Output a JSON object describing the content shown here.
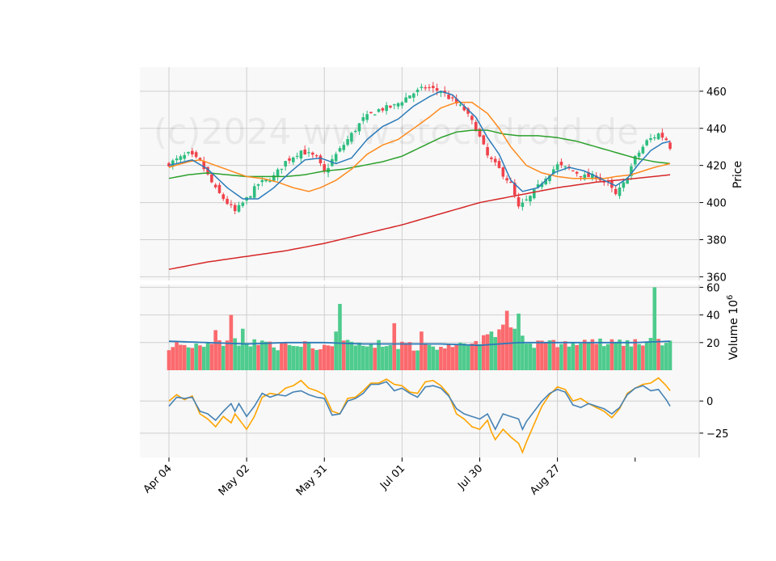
{
  "watermark": "(c)2024 www.stockdroid.de",
  "chart_data": {
    "type": "candlestick",
    "x_ticks": [
      "Apr 04",
      "May 02",
      "May 31",
      "Jul 01",
      "Jul 30",
      "Aug 27"
    ],
    "colors": {
      "up": "#2ebd7f",
      "down": "#f0424b",
      "vol_up": "#4ecb8d",
      "vol_down": "#fb6a6e",
      "ma_short": "#2b7bb9",
      "ma_mid": "#ff8a1c",
      "ma_long": "#2ca02c",
      "ma_200": "#d62728",
      "vol_ma": "#2b7bb9",
      "osc_a": "#4682b4",
      "osc_b": "#ffa500",
      "panel_bg": "#f8f8f8",
      "grid": "#cfcfcf"
    },
    "price_panel": {
      "ylabel": "Price",
      "ylim": [
        358,
        473
      ],
      "yticks": [
        360,
        380,
        400,
        420,
        440,
        460
      ],
      "close_keypoints": [
        [
          0,
          421
        ],
        [
          5,
          426
        ],
        [
          8,
          422
        ],
        [
          12,
          407
        ],
        [
          17,
          395
        ],
        [
          20,
          402
        ],
        [
          23,
          410
        ],
        [
          27,
          414
        ],
        [
          30,
          422
        ],
        [
          34,
          428
        ],
        [
          38,
          424
        ],
        [
          40,
          416
        ],
        [
          42,
          423
        ],
        [
          46,
          434
        ],
        [
          50,
          445
        ],
        [
          54,
          450
        ],
        [
          58,
          452
        ],
        [
          62,
          458
        ],
        [
          66,
          462
        ],
        [
          70,
          460
        ],
        [
          73,
          455
        ],
        [
          76,
          450
        ],
        [
          79,
          440
        ],
        [
          82,
          425
        ],
        [
          85,
          418
        ],
        [
          88,
          410
        ],
        [
          90,
          397
        ],
        [
          93,
          403
        ],
        [
          97,
          414
        ],
        [
          100,
          420
        ],
        [
          103,
          418
        ],
        [
          107,
          414
        ],
        [
          110,
          414
        ],
        [
          113,
          410
        ],
        [
          115,
          404
        ],
        [
          117,
          410
        ],
        [
          120,
          424
        ],
        [
          123,
          433
        ],
        [
          126,
          437
        ],
        [
          128,
          434
        ],
        [
          129,
          430
        ]
      ],
      "ma_short_keypoints": [
        [
          0,
          420
        ],
        [
          6,
          423
        ],
        [
          10,
          418
        ],
        [
          15,
          408
        ],
        [
          19,
          402
        ],
        [
          23,
          402
        ],
        [
          27,
          408
        ],
        [
          31,
          416
        ],
        [
          35,
          423
        ],
        [
          39,
          424
        ],
        [
          43,
          421
        ],
        [
          47,
          424
        ],
        [
          51,
          434
        ],
        [
          55,
          441
        ],
        [
          59,
          445
        ],
        [
          63,
          452
        ],
        [
          67,
          457
        ],
        [
          70,
          460
        ],
        [
          73,
          458
        ],
        [
          76,
          452
        ],
        [
          79,
          446
        ],
        [
          82,
          435
        ],
        [
          85,
          426
        ],
        [
          88,
          412
        ],
        [
          91,
          406
        ],
        [
          95,
          408
        ],
        [
          99,
          416
        ],
        [
          103,
          419
        ],
        [
          107,
          417
        ],
        [
          111,
          413
        ],
        [
          115,
          409
        ],
        [
          118,
          413
        ],
        [
          121,
          421
        ],
        [
          124,
          428
        ],
        [
          127,
          432
        ],
        [
          129,
          433
        ]
      ],
      "ma_mid_keypoints": [
        [
          0,
          419
        ],
        [
          5,
          422
        ],
        [
          8,
          423
        ],
        [
          12,
          420
        ],
        [
          16,
          417
        ],
        [
          20,
          414
        ],
        [
          24,
          413
        ],
        [
          28,
          411
        ],
        [
          32,
          408
        ],
        [
          36,
          406
        ],
        [
          39,
          408
        ],
        [
          43,
          412
        ],
        [
          47,
          418
        ],
        [
          51,
          426
        ],
        [
          55,
          431
        ],
        [
          59,
          434
        ],
        [
          63,
          440
        ],
        [
          67,
          446
        ],
        [
          70,
          451
        ],
        [
          74,
          454
        ],
        [
          78,
          454
        ],
        [
          82,
          448
        ],
        [
          85,
          440
        ],
        [
          88,
          430
        ],
        [
          92,
          420
        ],
        [
          96,
          416
        ],
        [
          100,
          414
        ],
        [
          104,
          413
        ],
        [
          108,
          413
        ],
        [
          112,
          413
        ],
        [
          115,
          414
        ],
        [
          119,
          415
        ],
        [
          122,
          417
        ],
        [
          125,
          419
        ],
        [
          129,
          421
        ]
      ],
      "ma_long_keypoints": [
        [
          0,
          413
        ],
        [
          5,
          415
        ],
        [
          10,
          416
        ],
        [
          15,
          415
        ],
        [
          20,
          414
        ],
        [
          25,
          414
        ],
        [
          30,
          414
        ],
        [
          35,
          415
        ],
        [
          40,
          417
        ],
        [
          45,
          418
        ],
        [
          50,
          420
        ],
        [
          55,
          422
        ],
        [
          60,
          425
        ],
        [
          65,
          430
        ],
        [
          70,
          435
        ],
        [
          74,
          438
        ],
        [
          78,
          439
        ],
        [
          82,
          439
        ],
        [
          86,
          437
        ],
        [
          90,
          436
        ],
        [
          95,
          436
        ],
        [
          100,
          435
        ],
        [
          105,
          433
        ],
        [
          110,
          430
        ],
        [
          115,
          427
        ],
        [
          120,
          424
        ],
        [
          125,
          422
        ],
        [
          129,
          421
        ]
      ],
      "ma_200_keypoints": [
        [
          0,
          364
        ],
        [
          10,
          368
        ],
        [
          20,
          371
        ],
        [
          30,
          374
        ],
        [
          40,
          378
        ],
        [
          50,
          383
        ],
        [
          60,
          388
        ],
        [
          70,
          394
        ],
        [
          80,
          400
        ],
        [
          90,
          404
        ],
        [
          100,
          408
        ],
        [
          110,
          411
        ],
        [
          120,
          413
        ],
        [
          129,
          415
        ]
      ]
    },
    "volume_panel": {
      "ylabel": "Volume  10^6",
      "ylim": [
        0,
        62
      ],
      "yticks": [
        20,
        40,
        60
      ],
      "base_keypoints": [
        [
          0,
          18
        ],
        [
          10,
          19
        ],
        [
          20,
          21
        ],
        [
          30,
          17
        ],
        [
          40,
          18
        ],
        [
          50,
          19
        ],
        [
          60,
          18
        ],
        [
          70,
          17
        ],
        [
          80,
          21
        ],
        [
          85,
          28
        ],
        [
          88,
          24
        ],
        [
          90,
          20
        ],
        [
          100,
          19
        ],
        [
          110,
          20
        ],
        [
          120,
          20
        ],
        [
          129,
          20
        ]
      ],
      "spikes": [
        [
          12,
          29
        ],
        [
          16,
          40
        ],
        [
          19,
          30
        ],
        [
          43,
          28
        ],
        [
          44,
          48
        ],
        [
          58,
          34
        ],
        [
          65,
          28
        ],
        [
          82,
          26
        ],
        [
          83,
          28
        ],
        [
          84,
          24
        ],
        [
          86,
          33
        ],
        [
          87,
          43
        ],
        [
          88,
          31
        ],
        [
          89,
          30
        ],
        [
          90,
          41
        ],
        [
          91,
          25
        ],
        [
          125,
          60
        ],
        [
          127,
          18
        ]
      ],
      "ma_keypoints": [
        [
          0,
          21
        ],
        [
          10,
          20
        ],
        [
          20,
          19
        ],
        [
          30,
          20
        ],
        [
          40,
          20
        ],
        [
          50,
          19
        ],
        [
          60,
          19
        ],
        [
          70,
          19
        ],
        [
          80,
          18
        ],
        [
          90,
          20
        ],
        [
          100,
          20
        ],
        [
          110,
          20
        ],
        [
          120,
          20
        ],
        [
          129,
          21
        ]
      ]
    },
    "oscillator_panel": {
      "ylim": [
        -44,
        24
      ],
      "yticks": [
        -25,
        0
      ],
      "series_a_keypoints": [
        [
          0,
          -4
        ],
        [
          2,
          3
        ],
        [
          4,
          2
        ],
        [
          6,
          3
        ],
        [
          8,
          -8
        ],
        [
          10,
          -10
        ],
        [
          12,
          -15
        ],
        [
          14,
          -8
        ],
        [
          16,
          -2
        ],
        [
          17,
          -8
        ],
        [
          18,
          -2
        ],
        [
          20,
          -12
        ],
        [
          22,
          -4
        ],
        [
          24,
          6
        ],
        [
          26,
          3
        ],
        [
          28,
          5
        ],
        [
          30,
          4
        ],
        [
          32,
          7
        ],
        [
          34,
          8
        ],
        [
          36,
          5
        ],
        [
          38,
          3
        ],
        [
          40,
          2
        ],
        [
          42,
          -11
        ],
        [
          44,
          -10
        ],
        [
          46,
          0
        ],
        [
          48,
          2
        ],
        [
          50,
          6
        ],
        [
          52,
          13
        ],
        [
          54,
          13
        ],
        [
          56,
          15
        ],
        [
          58,
          8
        ],
        [
          60,
          10
        ],
        [
          62,
          6
        ],
        [
          64,
          3
        ],
        [
          66,
          11
        ],
        [
          68,
          12
        ],
        [
          70,
          10
        ],
        [
          72,
          4
        ],
        [
          74,
          -6
        ],
        [
          76,
          -10
        ],
        [
          78,
          -12
        ],
        [
          80,
          -14
        ],
        [
          82,
          -10
        ],
        [
          83,
          -16
        ],
        [
          84,
          -22
        ],
        [
          86,
          -10
        ],
        [
          88,
          -12
        ],
        [
          90,
          -14
        ],
        [
          91,
          -22
        ],
        [
          92,
          -16
        ],
        [
          94,
          -8
        ],
        [
          96,
          0
        ],
        [
          98,
          6
        ],
        [
          100,
          9
        ],
        [
          102,
          7
        ],
        [
          104,
          -3
        ],
        [
          106,
          -5
        ],
        [
          108,
          -2
        ],
        [
          110,
          -4
        ],
        [
          112,
          -6
        ],
        [
          114,
          -10
        ],
        [
          116,
          -5
        ],
        [
          118,
          5
        ],
        [
          120,
          10
        ],
        [
          122,
          12
        ],
        [
          124,
          8
        ],
        [
          126,
          9
        ],
        [
          128,
          1
        ],
        [
          129,
          -4
        ]
      ],
      "series_b_keypoints": [
        [
          0,
          0
        ],
        [
          2,
          5
        ],
        [
          4,
          1
        ],
        [
          6,
          4
        ],
        [
          8,
          -10
        ],
        [
          10,
          -14
        ],
        [
          12,
          -20
        ],
        [
          14,
          -12
        ],
        [
          16,
          -17
        ],
        [
          17,
          -10
        ],
        [
          18,
          -14
        ],
        [
          20,
          -22
        ],
        [
          22,
          -12
        ],
        [
          24,
          3
        ],
        [
          26,
          6
        ],
        [
          28,
          5
        ],
        [
          30,
          10
        ],
        [
          32,
          12
        ],
        [
          34,
          16
        ],
        [
          36,
          10
        ],
        [
          38,
          8
        ],
        [
          40,
          5
        ],
        [
          42,
          -8
        ],
        [
          44,
          -10
        ],
        [
          46,
          2
        ],
        [
          48,
          3
        ],
        [
          50,
          8
        ],
        [
          52,
          14
        ],
        [
          54,
          14
        ],
        [
          56,
          17
        ],
        [
          58,
          13
        ],
        [
          60,
          12
        ],
        [
          62,
          7
        ],
        [
          64,
          6
        ],
        [
          66,
          15
        ],
        [
          68,
          16
        ],
        [
          70,
          12
        ],
        [
          72,
          5
        ],
        [
          74,
          -10
        ],
        [
          76,
          -14
        ],
        [
          78,
          -20
        ],
        [
          80,
          -22
        ],
        [
          82,
          -15
        ],
        [
          83,
          -24
        ],
        [
          84,
          -30
        ],
        [
          86,
          -22
        ],
        [
          88,
          -28
        ],
        [
          90,
          -33
        ],
        [
          91,
          -40
        ],
        [
          92,
          -32
        ],
        [
          94,
          -18
        ],
        [
          96,
          -4
        ],
        [
          98,
          5
        ],
        [
          100,
          11
        ],
        [
          102,
          9
        ],
        [
          104,
          0
        ],
        [
          106,
          2
        ],
        [
          108,
          -2
        ],
        [
          110,
          -5
        ],
        [
          112,
          -8
        ],
        [
          114,
          -13
        ],
        [
          116,
          -6
        ],
        [
          118,
          6
        ],
        [
          120,
          10
        ],
        [
          122,
          13
        ],
        [
          124,
          14
        ],
        [
          126,
          18
        ],
        [
          128,
          12
        ],
        [
          129,
          8
        ]
      ]
    }
  }
}
